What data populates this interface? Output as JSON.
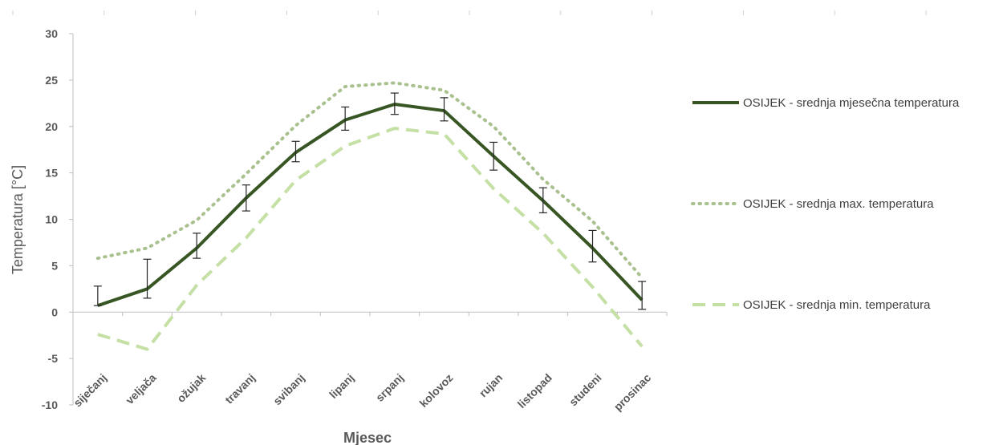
{
  "chart_data": {
    "type": "line",
    "title": "",
    "xlabel": "Mjesec",
    "ylabel": "Temperatura [°C]",
    "ylim": [
      -10,
      30
    ],
    "yticks": [
      -10,
      -5,
      0,
      5,
      10,
      15,
      20,
      25,
      30
    ],
    "grid": false,
    "legend_position": "right",
    "categories": [
      "siječanj",
      "veljača",
      "ožujak",
      "travanj",
      "svibanj",
      "lipanj",
      "srpanj",
      "kolovoz",
      "rujan",
      "listopad",
      "studeni",
      "prosinac"
    ],
    "series": [
      {
        "name": "OSIJEK - srednja mjesečna temperatura",
        "color": "#375623",
        "style": "solid",
        "values": [
          0.7,
          2.5,
          6.9,
          12.3,
          17.2,
          20.7,
          22.4,
          21.7,
          16.8,
          12.0,
          6.9,
          1.3
        ],
        "error": [
          [
            0.7,
            2.8
          ],
          [
            1.5,
            5.7
          ],
          [
            5.8,
            8.5
          ],
          [
            10.9,
            13.7
          ],
          [
            16.2,
            18.4
          ],
          [
            19.6,
            22.1
          ],
          [
            21.3,
            23.6
          ],
          [
            20.6,
            23.1
          ],
          [
            15.3,
            18.3
          ],
          [
            10.7,
            13.4
          ],
          [
            5.4,
            8.8
          ],
          [
            0.3,
            3.3
          ]
        ]
      },
      {
        "name": "OSIJEK - srednja max. temperatura",
        "color": "#A9C18F",
        "style": "dotted",
        "values": [
          5.8,
          6.9,
          9.9,
          14.9,
          20.1,
          24.3,
          24.7,
          23.9,
          20.0,
          14.3,
          9.8,
          3.7
        ]
      },
      {
        "name": "OSIJEK - srednja min. temperatura",
        "color": "#C5E0A5",
        "style": "dashed",
        "values": [
          -2.4,
          -4.0,
          2.9,
          8.0,
          14.2,
          17.9,
          19.8,
          19.2,
          13.3,
          8.5,
          2.7,
          -3.7
        ]
      }
    ]
  }
}
